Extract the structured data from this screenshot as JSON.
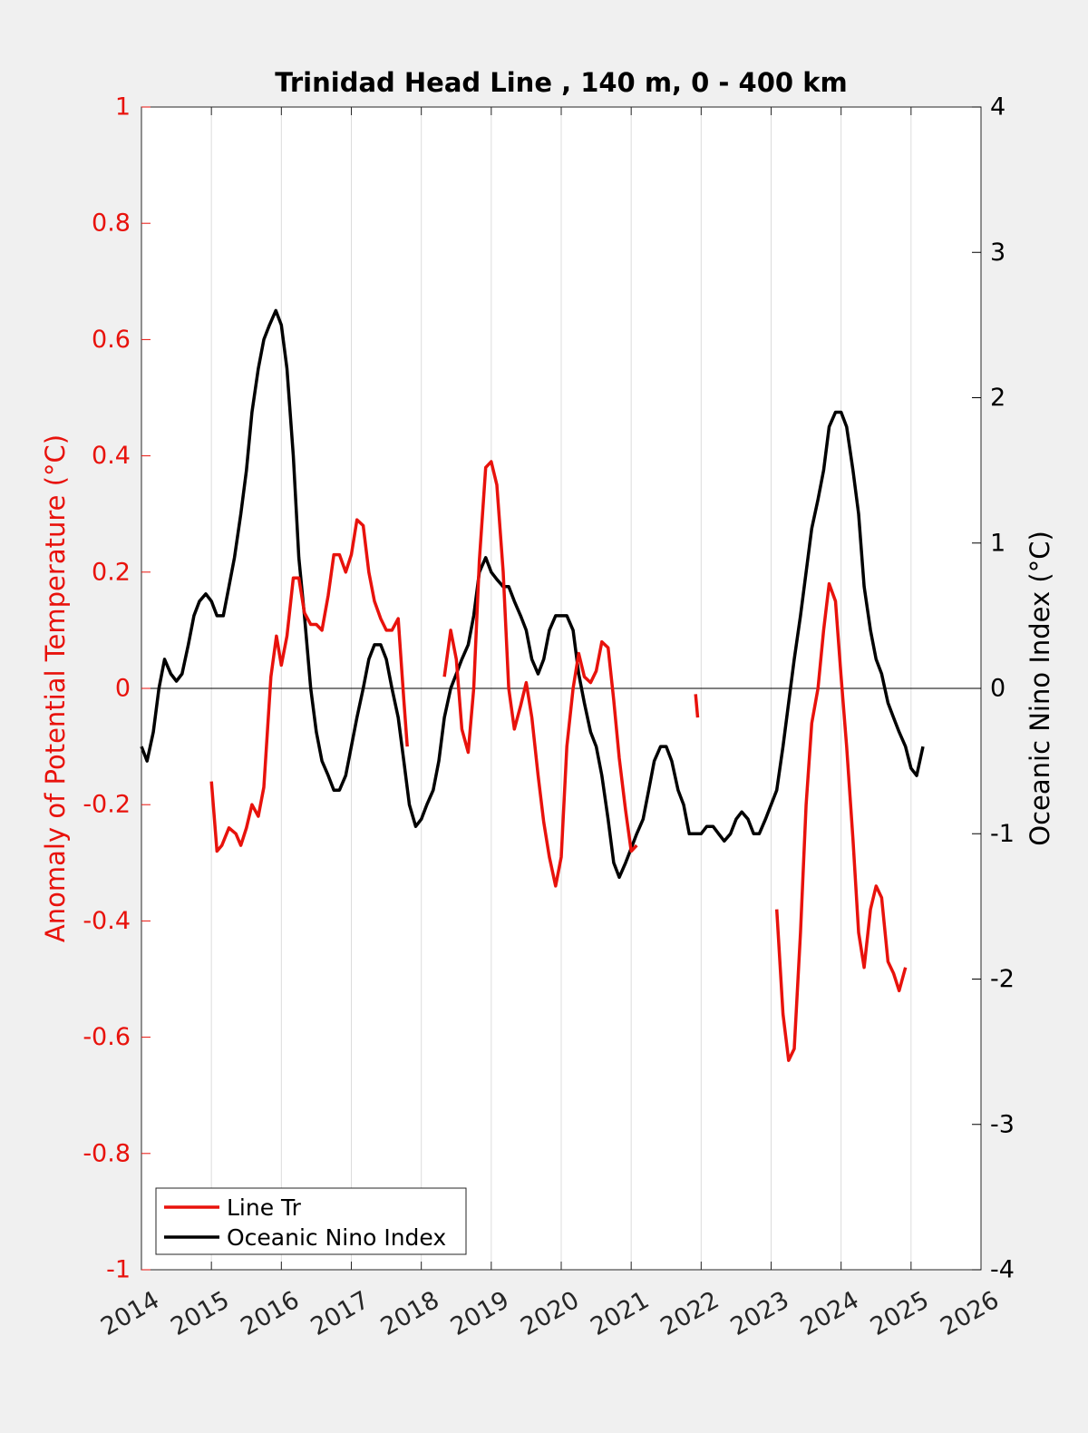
{
  "chart_data": {
    "type": "line",
    "title": "Trinidad Head Line , 140 m, 0 - 400 km",
    "xlabel": "",
    "ylabel_left": "Anomaly of Potential Temperature (°C)",
    "ylabel_right": "Oceanic Nino Index (°C)",
    "xlim": [
      2014,
      2026
    ],
    "ylim_left": [
      -1,
      1
    ],
    "ylim_right": [
      -4,
      4
    ],
    "x_ticks": [
      "2014",
      "2015",
      "2016",
      "2017",
      "2018",
      "2019",
      "2020",
      "2021",
      "2022",
      "2023",
      "2024",
      "2025",
      "2026"
    ],
    "y_ticks_left": [
      "1",
      "0.8",
      "0.6",
      "0.4",
      "0.2",
      "0",
      "-0.2",
      "-0.4",
      "-0.6",
      "-0.8",
      "-1"
    ],
    "y_ticks_right": [
      "4",
      "3",
      "2",
      "1",
      "0",
      "-1",
      "-2",
      "-3",
      "-4"
    ],
    "x_grid": true,
    "zero_line": true,
    "legend_position": "bottom-left",
    "colors": {
      "line_tr": "#e8120c",
      "oni": "#000000",
      "left_axis": "#e8120c",
      "right_axis": "#000000"
    },
    "series": [
      {
        "name": "Line Tr",
        "axis": "left",
        "segments": [
          [
            [
              2015.0,
              -0.16
            ],
            [
              2015.08,
              -0.28
            ],
            [
              2015.15,
              -0.27
            ],
            [
              2015.25,
              -0.24
            ],
            [
              2015.35,
              -0.25
            ],
            [
              2015.42,
              -0.27
            ],
            [
              2015.5,
              -0.24
            ],
            [
              2015.58,
              -0.2
            ],
            [
              2015.67,
              -0.22
            ],
            [
              2015.75,
              -0.17
            ],
            [
              2015.85,
              0.02
            ],
            [
              2015.93,
              0.09
            ],
            [
              2016.0,
              0.04
            ],
            [
              2016.08,
              0.09
            ],
            [
              2016.17,
              0.19
            ],
            [
              2016.25,
              0.19
            ],
            [
              2016.33,
              0.13
            ],
            [
              2016.42,
              0.11
            ],
            [
              2016.5,
              0.11
            ],
            [
              2016.58,
              0.1
            ],
            [
              2016.67,
              0.16
            ],
            [
              2016.75,
              0.23
            ],
            [
              2016.83,
              0.23
            ],
            [
              2016.92,
              0.2
            ],
            [
              2017.0,
              0.23
            ],
            [
              2017.08,
              0.29
            ],
            [
              2017.17,
              0.28
            ],
            [
              2017.25,
              0.2
            ],
            [
              2017.33,
              0.15
            ],
            [
              2017.42,
              0.12
            ],
            [
              2017.5,
              0.1
            ],
            [
              2017.58,
              0.1
            ],
            [
              2017.67,
              0.12
            ],
            [
              2017.75,
              -0.02
            ],
            [
              2017.8,
              -0.1
            ]
          ],
          [
            [
              2018.33,
              0.02
            ],
            [
              2018.42,
              0.1
            ],
            [
              2018.5,
              0.05
            ],
            [
              2018.58,
              -0.07
            ],
            [
              2018.67,
              -0.11
            ],
            [
              2018.75,
              0.0
            ],
            [
              2018.83,
              0.22
            ],
            [
              2018.92,
              0.38
            ],
            [
              2019.0,
              0.39
            ],
            [
              2019.08,
              0.35
            ],
            [
              2019.17,
              0.2
            ],
            [
              2019.25,
              0.0
            ],
            [
              2019.33,
              -0.07
            ],
            [
              2019.42,
              -0.03
            ],
            [
              2019.5,
              0.01
            ],
            [
              2019.58,
              -0.05
            ],
            [
              2019.67,
              -0.15
            ],
            [
              2019.75,
              -0.23
            ],
            [
              2019.83,
              -0.29
            ],
            [
              2019.92,
              -0.34
            ],
            [
              2020.0,
              -0.29
            ],
            [
              2020.08,
              -0.1
            ],
            [
              2020.17,
              0.0
            ],
            [
              2020.25,
              0.06
            ],
            [
              2020.33,
              0.02
            ],
            [
              2020.42,
              0.01
            ],
            [
              2020.5,
              0.03
            ],
            [
              2020.58,
              0.08
            ],
            [
              2020.67,
              0.07
            ],
            [
              2020.75,
              -0.02
            ],
            [
              2020.83,
              -0.12
            ],
            [
              2020.92,
              -0.21
            ],
            [
              2021.0,
              -0.28
            ],
            [
              2021.08,
              -0.27
            ]
          ],
          [
            [
              2021.92,
              -0.01
            ],
            [
              2021.95,
              -0.05
            ]
          ],
          [
            [
              2023.08,
              -0.38
            ],
            [
              2023.17,
              -0.56
            ],
            [
              2023.25,
              -0.64
            ],
            [
              2023.33,
              -0.62
            ],
            [
              2023.42,
              -0.42
            ],
            [
              2023.5,
              -0.2
            ],
            [
              2023.58,
              -0.06
            ],
            [
              2023.67,
              0.0
            ],
            [
              2023.75,
              0.1
            ],
            [
              2023.83,
              0.18
            ],
            [
              2023.92,
              0.15
            ],
            [
              2024.0,
              0.02
            ],
            [
              2024.08,
              -0.1
            ],
            [
              2024.17,
              -0.26
            ],
            [
              2024.25,
              -0.42
            ],
            [
              2024.33,
              -0.48
            ],
            [
              2024.42,
              -0.38
            ],
            [
              2024.5,
              -0.34
            ],
            [
              2024.58,
              -0.36
            ],
            [
              2024.67,
              -0.47
            ],
            [
              2024.75,
              -0.49
            ],
            [
              2024.83,
              -0.52
            ],
            [
              2024.92,
              -0.48
            ]
          ]
        ]
      },
      {
        "name": "Oceanic Nino Index",
        "axis": "right",
        "segments": [
          [
            [
              2014.0,
              -0.4
            ],
            [
              2014.08,
              -0.5
            ],
            [
              2014.17,
              -0.3
            ],
            [
              2014.25,
              0.0
            ],
            [
              2014.33,
              0.2
            ],
            [
              2014.42,
              0.1
            ],
            [
              2014.5,
              0.05
            ],
            [
              2014.58,
              0.1
            ],
            [
              2014.67,
              0.3
            ],
            [
              2014.75,
              0.5
            ],
            [
              2014.83,
              0.6
            ],
            [
              2014.92,
              0.65
            ],
            [
              2015.0,
              0.6
            ],
            [
              2015.08,
              0.5
            ],
            [
              2015.17,
              0.5
            ],
            [
              2015.25,
              0.7
            ],
            [
              2015.33,
              0.9
            ],
            [
              2015.42,
              1.2
            ],
            [
              2015.5,
              1.5
            ],
            [
              2015.58,
              1.9
            ],
            [
              2015.67,
              2.2
            ],
            [
              2015.75,
              2.4
            ],
            [
              2015.83,
              2.5
            ],
            [
              2015.92,
              2.6
            ],
            [
              2016.0,
              2.5
            ],
            [
              2016.08,
              2.2
            ],
            [
              2016.17,
              1.6
            ],
            [
              2016.25,
              0.9
            ],
            [
              2016.33,
              0.5
            ],
            [
              2016.42,
              0.0
            ],
            [
              2016.5,
              -0.3
            ],
            [
              2016.58,
              -0.5
            ],
            [
              2016.67,
              -0.6
            ],
            [
              2016.75,
              -0.7
            ],
            [
              2016.83,
              -0.7
            ],
            [
              2016.92,
              -0.6
            ],
            [
              2017.0,
              -0.4
            ],
            [
              2017.08,
              -0.2
            ],
            [
              2017.17,
              0.0
            ],
            [
              2017.25,
              0.2
            ],
            [
              2017.33,
              0.3
            ],
            [
              2017.42,
              0.3
            ],
            [
              2017.5,
              0.2
            ],
            [
              2017.58,
              0.0
            ],
            [
              2017.67,
              -0.2
            ],
            [
              2017.75,
              -0.5
            ],
            [
              2017.83,
              -0.8
            ],
            [
              2017.92,
              -0.95
            ],
            [
              2018.0,
              -0.9
            ],
            [
              2018.08,
              -0.8
            ],
            [
              2018.17,
              -0.7
            ],
            [
              2018.25,
              -0.5
            ],
            [
              2018.33,
              -0.2
            ],
            [
              2018.42,
              0.0
            ],
            [
              2018.5,
              0.1
            ],
            [
              2018.58,
              0.2
            ],
            [
              2018.67,
              0.3
            ],
            [
              2018.75,
              0.5
            ],
            [
              2018.83,
              0.8
            ],
            [
              2018.92,
              0.9
            ],
            [
              2019.0,
              0.8
            ],
            [
              2019.08,
              0.75
            ],
            [
              2019.17,
              0.7
            ],
            [
              2019.25,
              0.7
            ],
            [
              2019.33,
              0.6
            ],
            [
              2019.42,
              0.5
            ],
            [
              2019.5,
              0.4
            ],
            [
              2019.58,
              0.2
            ],
            [
              2019.67,
              0.1
            ],
            [
              2019.75,
              0.2
            ],
            [
              2019.83,
              0.4
            ],
            [
              2019.92,
              0.5
            ],
            [
              2020.0,
              0.5
            ],
            [
              2020.08,
              0.5
            ],
            [
              2020.17,
              0.4
            ],
            [
              2020.25,
              0.1
            ],
            [
              2020.33,
              -0.1
            ],
            [
              2020.42,
              -0.3
            ],
            [
              2020.5,
              -0.4
            ],
            [
              2020.58,
              -0.6
            ],
            [
              2020.67,
              -0.9
            ],
            [
              2020.75,
              -1.2
            ],
            [
              2020.83,
              -1.3
            ],
            [
              2020.92,
              -1.2
            ],
            [
              2021.0,
              -1.1
            ],
            [
              2021.08,
              -1.0
            ],
            [
              2021.17,
              -0.9
            ],
            [
              2021.25,
              -0.7
            ],
            [
              2021.33,
              -0.5
            ],
            [
              2021.42,
              -0.4
            ],
            [
              2021.5,
              -0.4
            ],
            [
              2021.58,
              -0.5
            ],
            [
              2021.67,
              -0.7
            ],
            [
              2021.75,
              -0.8
            ],
            [
              2021.83,
              -1.0
            ],
            [
              2021.92,
              -1.0
            ],
            [
              2022.0,
              -1.0
            ],
            [
              2022.08,
              -0.95
            ],
            [
              2022.17,
              -0.95
            ],
            [
              2022.25,
              -1.0
            ],
            [
              2022.33,
              -1.05
            ],
            [
              2022.42,
              -1.0
            ],
            [
              2022.5,
              -0.9
            ],
            [
              2022.58,
              -0.85
            ],
            [
              2022.67,
              -0.9
            ],
            [
              2022.75,
              -1.0
            ],
            [
              2022.83,
              -1.0
            ],
            [
              2022.92,
              -0.9
            ],
            [
              2023.0,
              -0.8
            ],
            [
              2023.08,
              -0.7
            ],
            [
              2023.17,
              -0.4
            ],
            [
              2023.25,
              -0.1
            ],
            [
              2023.33,
              0.2
            ],
            [
              2023.42,
              0.5
            ],
            [
              2023.5,
              0.8
            ],
            [
              2023.58,
              1.1
            ],
            [
              2023.67,
              1.3
            ],
            [
              2023.75,
              1.5
            ],
            [
              2023.83,
              1.8
            ],
            [
              2023.92,
              1.9
            ],
            [
              2024.0,
              1.9
            ],
            [
              2024.08,
              1.8
            ],
            [
              2024.17,
              1.5
            ],
            [
              2024.25,
              1.2
            ],
            [
              2024.33,
              0.7
            ],
            [
              2024.42,
              0.4
            ],
            [
              2024.5,
              0.2
            ],
            [
              2024.58,
              0.1
            ],
            [
              2024.67,
              -0.1
            ],
            [
              2024.75,
              -0.2
            ],
            [
              2024.83,
              -0.3
            ],
            [
              2024.92,
              -0.4
            ],
            [
              2025.0,
              -0.55
            ],
            [
              2025.08,
              -0.6
            ],
            [
              2025.17,
              -0.4
            ]
          ]
        ]
      }
    ]
  }
}
